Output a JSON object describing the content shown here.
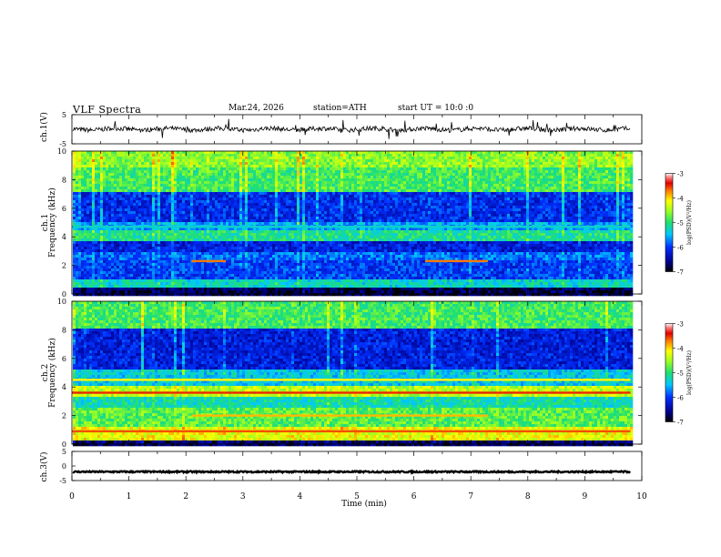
{
  "header": {
    "title": "VLF  Spectra",
    "date": "Mar.24, 2026",
    "station": "station=ATH",
    "start": "start  UT  =    10:0  :0"
  },
  "chart_data": [
    {
      "type": "line",
      "name": "ch1-waveform",
      "ylabel": "ch.1(V)",
      "ylim": [
        -5,
        5
      ],
      "yticks": [
        "5",
        "-5"
      ],
      "xlim": [
        0,
        10
      ],
      "baseline": 0,
      "line_color": "#000000"
    },
    {
      "type": "heatmap",
      "name": "ch1-spectrogram",
      "ylabel": "ch.1\nFrequency  (kHz)",
      "ylim": [
        0,
        10
      ],
      "yticks": [
        "0",
        "2",
        "4",
        "6",
        "8",
        "10"
      ],
      "xlim": [
        0,
        9.8
      ],
      "colorbar": {
        "label": "log(PSD)(V²/Hz)",
        "ticks": [
          "-3",
          "-4",
          "-5",
          "-6",
          "-7"
        ],
        "range": [
          -7,
          -3
        ]
      },
      "bands": [
        {
          "f0": 9.0,
          "f1": 10.0,
          "level": -4.6
        },
        {
          "f0": 7.2,
          "f1": 9.0,
          "level": -4.9
        },
        {
          "f0": 5.2,
          "f1": 7.2,
          "level": -6.1
        },
        {
          "f0": 4.6,
          "f1": 5.2,
          "level": -5.6
        },
        {
          "f0": 3.8,
          "f1": 4.6,
          "level": -5.1
        },
        {
          "f0": 3.0,
          "f1": 3.8,
          "level": -6.2
        },
        {
          "f0": 2.4,
          "f1": 3.0,
          "level": -5.8
        },
        {
          "f0": 1.2,
          "f1": 2.4,
          "level": -6.0
        },
        {
          "f0": 0.5,
          "f1": 1.2,
          "level": -5.3
        },
        {
          "f0": 0.0,
          "f1": 0.5,
          "level": -6.8
        }
      ],
      "lines": [
        {
          "f": 2.3,
          "t0": 2.1,
          "t1": 2.7,
          "level": -3.7
        },
        {
          "f": 2.3,
          "t0": 6.2,
          "t1": 7.3,
          "level": -3.7
        },
        {
          "f": 4.7,
          "t0": 0.0,
          "t1": 9.8,
          "level": -5.3
        }
      ]
    },
    {
      "type": "heatmap",
      "name": "ch2-spectrogram",
      "ylabel": "ch.2\nFrequency  (kHz)",
      "ylim": [
        0,
        10
      ],
      "yticks": [
        "0",
        "2",
        "4",
        "6",
        "8",
        "10"
      ],
      "xlim": [
        0,
        9.8
      ],
      "colorbar": {
        "label": "log(PSD)(V²/Hz)",
        "ticks": [
          "-3",
          "-4",
          "-5",
          "-6",
          "-7"
        ],
        "range": [
          -7,
          -3
        ]
      },
      "bands": [
        {
          "f0": 8.2,
          "f1": 10.0,
          "level": -4.9
        },
        {
          "f0": 5.4,
          "f1": 8.2,
          "level": -6.2
        },
        {
          "f0": 4.2,
          "f1": 5.4,
          "level": -5.4
        },
        {
          "f0": 3.4,
          "f1": 4.2,
          "level": -4.4
        },
        {
          "f0": 2.6,
          "f1": 3.4,
          "level": -5.2
        },
        {
          "f0": 1.4,
          "f1": 2.6,
          "level": -4.8
        },
        {
          "f0": 0.4,
          "f1": 1.4,
          "level": -4.2
        },
        {
          "f0": 0.0,
          "f1": 0.4,
          "level": -6.7
        }
      ],
      "lines": [
        {
          "f": 3.6,
          "t0": 0.0,
          "t1": 9.8,
          "level": -3.5
        },
        {
          "f": 2.0,
          "t0": 2.1,
          "t1": 7.3,
          "level": -3.9
        },
        {
          "f": 4.5,
          "t0": 0.0,
          "t1": 9.8,
          "level": -4.1
        },
        {
          "f": 0.9,
          "t0": 0.0,
          "t1": 9.8,
          "level": -3.6
        }
      ]
    },
    {
      "type": "line",
      "name": "ch3-waveform",
      "ylabel": "ch.3(V)",
      "ylim": [
        -5,
        5
      ],
      "yticks": [
        "5",
        "0",
        "-5"
      ],
      "xlim": [
        0,
        10
      ],
      "baseline": -2,
      "line_color": "#000000"
    }
  ],
  "xaxis": {
    "label": "Time  (min)",
    "ticks": [
      "0",
      "1",
      "2",
      "3",
      "4",
      "5",
      "6",
      "7",
      "8",
      "9",
      "10"
    ]
  }
}
